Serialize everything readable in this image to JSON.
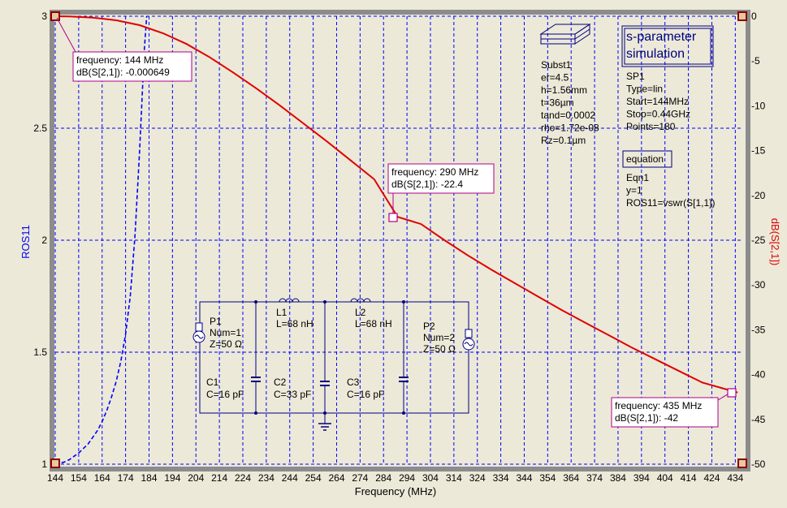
{
  "colors": {
    "background": "#ece9d8",
    "frame": "#8c8c8c",
    "grid": "#0000ff",
    "ros_series": "#0000ff",
    "db_series": "#e00000",
    "text": "#000000",
    "component": "#000080",
    "marker": "#b0008c",
    "left_axis_label": "#0000ff",
    "right_axis_label": "#e00000"
  },
  "chart_data": {
    "type": "line",
    "xlabel": "Frequency (MHz)",
    "ylabel_left": "ROS11",
    "ylabel_right": "dB(S[2,1])",
    "xlim": [
      144,
      437
    ],
    "ylim_left": [
      1,
      3
    ],
    "ylim_right": [
      -50,
      0
    ],
    "grid": true,
    "x_ticks": [
      144,
      154,
      164,
      174,
      184,
      194,
      204,
      214,
      224,
      234,
      244,
      254,
      264,
      274,
      284,
      294,
      304,
      314,
      324,
      334,
      344,
      354,
      364,
      374,
      384,
      394,
      404,
      414,
      424,
      434
    ],
    "y_left_ticks": [
      {
        "value": 3,
        "label": "3"
      },
      {
        "value": 2.5,
        "label": "2.5"
      },
      {
        "value": 2,
        "label": "2"
      },
      {
        "value": 1.5,
        "label": "1.5"
      },
      {
        "value": 1,
        "label": "1"
      }
    ],
    "y_right_ticks": [
      0,
      -5,
      -10,
      -15,
      -20,
      -25,
      -30,
      -35,
      -40,
      -45,
      -50
    ],
    "series": [
      {
        "axis": "left",
        "style": "dashed",
        "color": "#0000ff",
        "x": [
          144,
          146,
          148,
          150,
          152,
          154,
          156,
          158,
          160,
          162,
          164,
          166,
          168,
          170,
          172,
          174,
          176,
          178,
          180,
          182,
          183
        ],
        "y": [
          1.0,
          1.004,
          1.01,
          1.02,
          1.035,
          1.05,
          1.07,
          1.09,
          1.12,
          1.15,
          1.19,
          1.24,
          1.3,
          1.37,
          1.46,
          1.58,
          1.75,
          2.02,
          2.4,
          2.85,
          3.0
        ]
      },
      {
        "axis": "right",
        "style": "solid",
        "color": "#e00000",
        "x": [
          144,
          150,
          160,
          170,
          180,
          190,
          200,
          210,
          220,
          230,
          240,
          250,
          260,
          270,
          280,
          290,
          300,
          310,
          320,
          330,
          340,
          350,
          360,
          370,
          380,
          390,
          400,
          410,
          420,
          435
        ],
        "y": [
          -0.000649,
          -0.03,
          -0.15,
          -0.45,
          -1.0,
          -1.9,
          -3.1,
          -4.6,
          -6.3,
          -8.1,
          -10.0,
          -12.0,
          -14.0,
          -16.1,
          -18.2,
          -22.4,
          -23.2,
          -25.0,
          -26.7,
          -28.3,
          -29.8,
          -31.3,
          -32.8,
          -34.2,
          -35.6,
          -37.0,
          -38.3,
          -39.6,
          -40.9,
          -42.0
        ]
      }
    ],
    "markers": [
      {
        "text": [
          "frequency: 144 MHz",
          "dB(S[2,1]): -0.000649"
        ]
      },
      {
        "text": [
          "frequency: 290 MHz",
          "dB(S[2,1]): -22.4"
        ]
      },
      {
        "text": [
          "frequency: 435 MHz",
          "dB(S[2,1]): -42"
        ]
      }
    ]
  },
  "substrate": {
    "lines": [
      "Subst1",
      "er=4.5",
      "h=1.56mm",
      "t=36µm",
      "tand=0.0002",
      "rho=1.72e-08",
      "Rz=0.1µm"
    ]
  },
  "sim": {
    "title_lines": [
      "s-parameter",
      "simulation"
    ],
    "lines": [
      "SP1",
      "Type=lin",
      "Start=144MHz",
      "Stop=0.44GHz",
      "Points=180"
    ]
  },
  "equation": {
    "title": "equation",
    "lines": [
      "Eqn1",
      "y=1",
      "ROS11=vswr(S[1,1])"
    ]
  },
  "schematic": {
    "P1": [
      "P1",
      "Num=1",
      "Z=50 Ω"
    ],
    "P2": [
      "P2",
      "Num=2",
      "Z=50 Ω"
    ],
    "L1": [
      "L1",
      "L=68 nH"
    ],
    "L2": [
      "L2",
      "L=68 nH"
    ],
    "C1": [
      "C1",
      "C=16 pF"
    ],
    "C2": [
      "C2",
      "C=33 pF"
    ],
    "C3": [
      "C3",
      "C=16 pF"
    ]
  }
}
